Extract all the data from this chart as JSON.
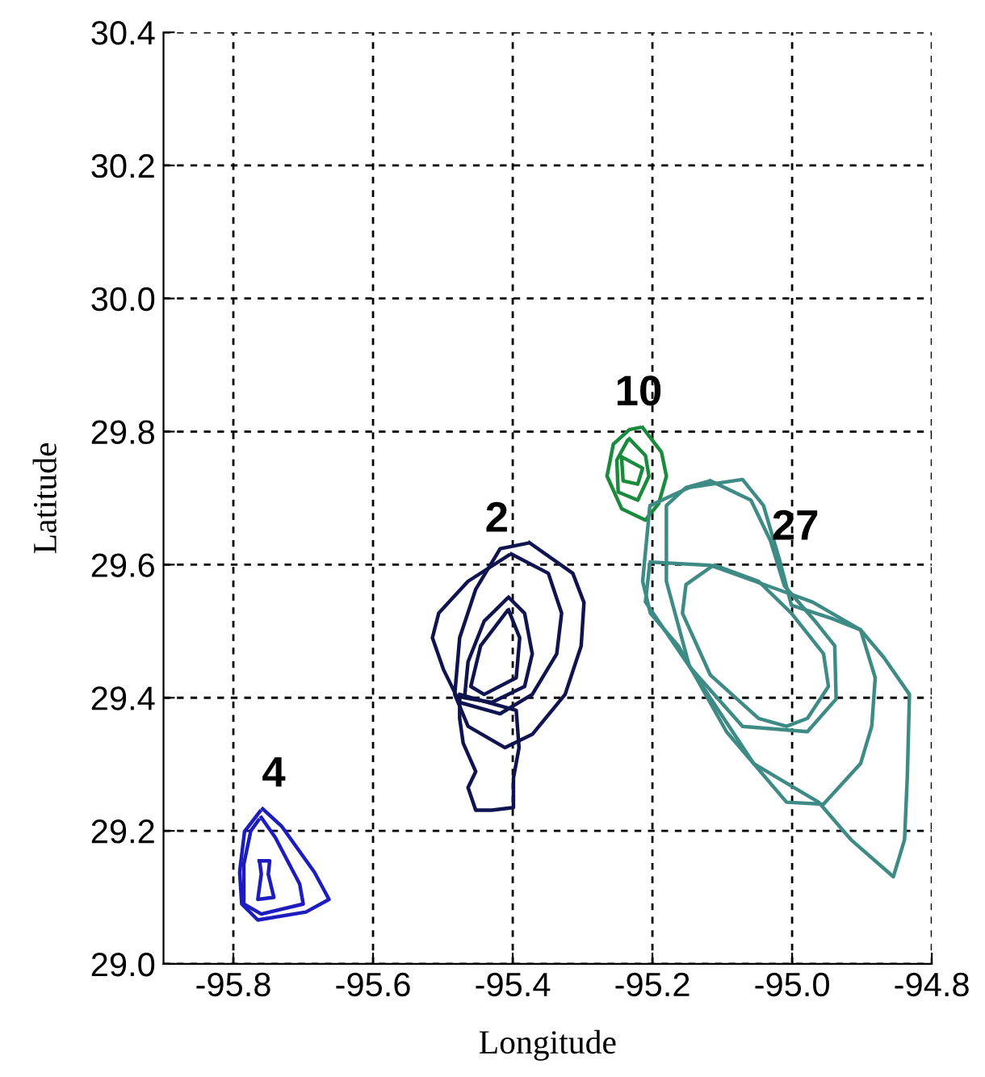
{
  "chart_data": {
    "type": "line",
    "xlabel": "Longitude",
    "ylabel": "Latitude",
    "xlim": [
      -95.9,
      -94.8
    ],
    "ylim": [
      29.0,
      30.4
    ],
    "xticks": [
      -95.8,
      -95.6,
      -95.4,
      -95.2,
      {
        "value": -95.0,
        "label": "-95.0"
      },
      -94.8
    ],
    "yticks": [
      {
        "value": 29.0,
        "label": "29.0"
      },
      29.2,
      29.4,
      29.6,
      29.8,
      {
        "value": 30.0,
        "label": "30.0"
      },
      30.2,
      30.4
    ],
    "grid": true,
    "series": [
      {
        "name": "4",
        "color": "#1c1cc0",
        "x": [
          -95.758,
          -95.731,
          -95.684,
          -95.663,
          -95.696,
          -95.765,
          -95.788,
          -95.791,
          -95.784,
          -95.762
        ],
        "values": [
          29.233,
          29.207,
          29.138,
          29.097,
          29.078,
          29.066,
          29.09,
          29.138,
          29.199,
          29.229
        ]
      },
      {
        "color": "#1c1cc0",
        "x": [
          -95.76,
          -95.74,
          -95.705,
          -95.7,
          -95.76,
          -95.785,
          -95.785,
          -95.775,
          -95.764
        ],
        "values": [
          29.22,
          29.19,
          29.12,
          29.09,
          29.075,
          29.09,
          29.15,
          29.2,
          29.216
        ]
      },
      {
        "color": "#1c1cc0",
        "x": [
          -95.763,
          -95.748,
          -95.75,
          -95.742,
          -95.765,
          -95.76,
          -95.762
        ],
        "values": [
          29.155,
          29.155,
          29.135,
          29.1,
          29.097,
          29.135,
          29.151
        ]
      },
      {
        "name": "2",
        "color": "#0f1450",
        "x": [
          -95.402,
          -95.349,
          -95.33,
          -95.337,
          -95.372,
          -95.418,
          -95.476,
          -95.499,
          -95.515,
          -95.506,
          -95.464,
          -95.406
        ],
        "values": [
          29.616,
          29.587,
          29.527,
          29.466,
          29.405,
          29.376,
          29.393,
          29.442,
          29.49,
          29.527,
          29.575,
          29.614
        ]
      },
      {
        "color": "#0f1450",
        "x": [
          -95.376,
          -95.314,
          -95.298,
          -95.302,
          -95.325,
          -95.372,
          -95.411,
          -95.464,
          -95.483,
          -95.476,
          -95.453,
          -95.418,
          -95.38
        ],
        "values": [
          29.633,
          29.587,
          29.543,
          29.478,
          29.405,
          29.345,
          29.325,
          29.357,
          29.405,
          29.49,
          29.563,
          29.624,
          29.632
        ]
      },
      {
        "color": "#0f1450",
        "x": [
          -95.476,
          -95.395,
          -95.391,
          -95.399,
          -95.399,
          -95.43,
          -95.453,
          -95.464,
          -95.453,
          -95.471,
          -95.476,
          -95.476
        ],
        "values": [
          29.405,
          29.381,
          29.325,
          29.279,
          29.235,
          29.231,
          29.231,
          29.265,
          29.289,
          29.332,
          29.369,
          29.401
        ]
      },
      {
        "color": "#0f1450",
        "x": [
          -95.406,
          -95.383,
          -95.372,
          -95.383,
          -95.43,
          -95.469,
          -95.464,
          -95.441,
          -95.409
        ],
        "values": [
          29.551,
          29.527,
          29.466,
          29.417,
          29.393,
          29.4,
          29.454,
          29.515,
          29.548
        ]
      },
      {
        "color": "#0f1450",
        "x": [
          -95.406,
          -95.39,
          -95.395,
          -95.441,
          -95.46,
          -95.446,
          -95.409
        ],
        "values": [
          29.532,
          29.49,
          29.43,
          29.405,
          29.417,
          29.478,
          29.529
        ]
      },
      {
        "name": "10",
        "color": "#1a8a3c",
        "x": [
          -95.214,
          -95.187,
          -95.18,
          -95.191,
          -95.21,
          -95.244,
          -95.265,
          -95.256,
          -95.233,
          -95.218
        ],
        "values": [
          29.806,
          29.769,
          29.733,
          29.692,
          29.667,
          29.684,
          29.733,
          29.781,
          29.803,
          29.806
        ]
      },
      {
        "color": "#1a8a3c",
        "x": [
          -95.233,
          -95.21,
          -95.205,
          -95.221,
          -95.249,
          -95.251,
          -95.236
        ],
        "values": [
          29.789,
          29.764,
          29.733,
          29.697,
          29.709,
          29.757,
          29.786
        ]
      },
      {
        "color": "#1a8a3c",
        "x": [
          -95.244,
          -95.214,
          -95.221,
          -95.242,
          -95.244
        ],
        "values": [
          29.762,
          29.745,
          29.721,
          29.726,
          29.758
        ]
      },
      {
        "name": "27",
        "color": "#3e8b86",
        "x": [
          -95.203,
          -95.117,
          -95.008,
          -94.971,
          -94.902,
          -94.869,
          -94.832,
          -94.835,
          -94.839,
          -94.855,
          -94.916,
          -94.962,
          -95.055,
          -95.147,
          -95.21,
          -95.204
        ],
        "values": [
          29.604,
          29.599,
          29.558,
          29.544,
          29.502,
          29.461,
          29.405,
          29.284,
          29.187,
          29.131,
          29.187,
          29.243,
          29.301,
          29.447,
          29.544,
          29.6
        ]
      },
      {
        "color": "#3e8b86",
        "x": [
          -95.117,
          -95.059,
          -95.031,
          -95.011,
          -94.967,
          -94.939,
          -94.937,
          -94.978,
          -95.071,
          -95.147,
          -95.18,
          -95.18,
          -95.152,
          -95.121
        ],
        "values": [
          29.726,
          29.697,
          29.636,
          29.568,
          29.515,
          29.478,
          29.398,
          29.349,
          29.357,
          29.447,
          29.575,
          29.689,
          29.716,
          29.725
        ]
      },
      {
        "color": "#3e8b86",
        "x": [
          -95.203,
          -95.147,
          -95.071,
          -95.041,
          -95.018,
          -95.001,
          -94.943,
          -94.902,
          -94.881,
          -94.886,
          -94.902,
          -94.955,
          -95.008,
          -95.094,
          -95.163,
          -95.203,
          -95.214,
          -95.204
        ],
        "values": [
          29.689,
          29.716,
          29.728,
          29.689,
          29.607,
          29.539,
          29.519,
          29.502,
          29.43,
          29.357,
          29.301,
          29.24,
          29.243,
          29.349,
          29.478,
          29.527,
          29.575,
          29.685
        ]
      },
      {
        "color": "#3e8b86",
        "x": [
          -95.11,
          -95.048,
          -95.001,
          -94.955,
          -94.948,
          -94.978,
          -95.008,
          -95.048,
          -95.117,
          -95.157,
          -95.152,
          -95.114
        ],
        "values": [
          29.599,
          29.575,
          29.527,
          29.466,
          29.417,
          29.369,
          29.357,
          29.369,
          29.434,
          29.527,
          29.57,
          29.598
        ]
      }
    ]
  }
}
